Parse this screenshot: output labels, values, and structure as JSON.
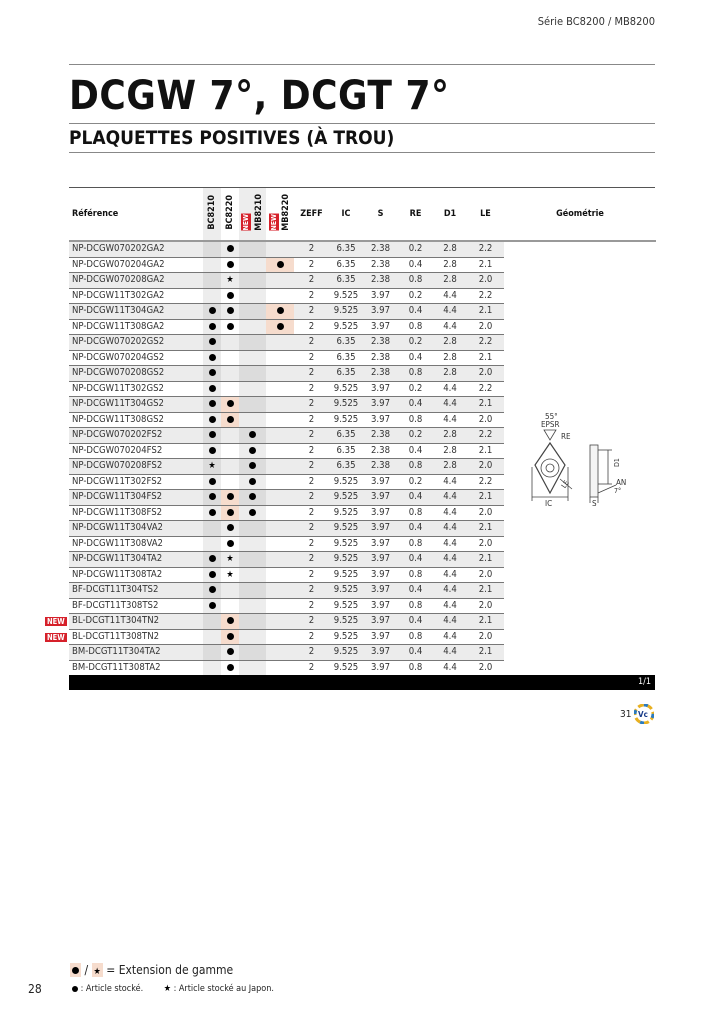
{
  "header": {
    "series": "Série BC8200 / MB8200"
  },
  "title": "DCGW 7°, DCGT 7°",
  "subtitle": "PLAQUETTES POSITIVES (À TROU)",
  "table": {
    "columns": {
      "reference": "Référence",
      "bc8210": "BC8210",
      "bc8220": "BC8220",
      "mb8210": "MB8210",
      "mb8220": "MB8220",
      "new_tag": "NEW",
      "zeff": "ZEFF",
      "ic": "IC",
      "s": "S",
      "re": "RE",
      "d1": "D1",
      "le": "LE",
      "geometry": "Géométrie"
    },
    "rows": [
      {
        "ref": "NP-DCGW070202GA2",
        "grades": [
          "",
          "dot",
          "",
          ""
        ],
        "zeff": "2",
        "ic": "6.35",
        "s": "2.38",
        "re": "0.2",
        "d1": "2.8",
        "le": "2.2"
      },
      {
        "ref": "NP-DCGW070204GA2",
        "grades": [
          "",
          "dot",
          "",
          "dot-ext"
        ],
        "zeff": "2",
        "ic": "6.35",
        "s": "2.38",
        "re": "0.4",
        "d1": "2.8",
        "le": "2.1"
      },
      {
        "ref": "NP-DCGW070208GA2",
        "grades": [
          "",
          "star",
          "",
          ""
        ],
        "zeff": "2",
        "ic": "6.35",
        "s": "2.38",
        "re": "0.8",
        "d1": "2.8",
        "le": "2.0"
      },
      {
        "ref": "NP-DCGW11T302GA2",
        "grades": [
          "",
          "dot",
          "",
          ""
        ],
        "zeff": "2",
        "ic": "9.525",
        "s": "3.97",
        "re": "0.2",
        "d1": "4.4",
        "le": "2.2"
      },
      {
        "ref": "NP-DCGW11T304GA2",
        "grades": [
          "dot",
          "dot",
          "",
          "dot-ext"
        ],
        "zeff": "2",
        "ic": "9.525",
        "s": "3.97",
        "re": "0.4",
        "d1": "4.4",
        "le": "2.1"
      },
      {
        "ref": "NP-DCGW11T308GA2",
        "grades": [
          "dot",
          "dot",
          "",
          "dot-ext"
        ],
        "zeff": "2",
        "ic": "9.525",
        "s": "3.97",
        "re": "0.8",
        "d1": "4.4",
        "le": "2.0"
      },
      {
        "ref": "NP-DCGW070202GS2",
        "grades": [
          "dot",
          "",
          "",
          ""
        ],
        "zeff": "2",
        "ic": "6.35",
        "s": "2.38",
        "re": "0.2",
        "d1": "2.8",
        "le": "2.2"
      },
      {
        "ref": "NP-DCGW070204GS2",
        "grades": [
          "dot",
          "",
          "",
          ""
        ],
        "zeff": "2",
        "ic": "6.35",
        "s": "2.38",
        "re": "0.4",
        "d1": "2.8",
        "le": "2.1"
      },
      {
        "ref": "NP-DCGW070208GS2",
        "grades": [
          "dot",
          "",
          "",
          ""
        ],
        "zeff": "2",
        "ic": "6.35",
        "s": "2.38",
        "re": "0.8",
        "d1": "2.8",
        "le": "2.0"
      },
      {
        "ref": "NP-DCGW11T302GS2",
        "grades": [
          "dot",
          "",
          "",
          ""
        ],
        "zeff": "2",
        "ic": "9.525",
        "s": "3.97",
        "re": "0.2",
        "d1": "4.4",
        "le": "2.2"
      },
      {
        "ref": "NP-DCGW11T304GS2",
        "grades": [
          "dot",
          "dot-ext",
          "",
          ""
        ],
        "zeff": "2",
        "ic": "9.525",
        "s": "3.97",
        "re": "0.4",
        "d1": "4.4",
        "le": "2.1"
      },
      {
        "ref": "NP-DCGW11T308GS2",
        "grades": [
          "dot",
          "dot-ext",
          "",
          ""
        ],
        "zeff": "2",
        "ic": "9.525",
        "s": "3.97",
        "re": "0.8",
        "d1": "4.4",
        "le": "2.0"
      },
      {
        "ref": "NP-DCGW070202FS2",
        "grades": [
          "dot",
          "",
          "dot",
          ""
        ],
        "zeff": "2",
        "ic": "6.35",
        "s": "2.38",
        "re": "0.2",
        "d1": "2.8",
        "le": "2.2"
      },
      {
        "ref": "NP-DCGW070204FS2",
        "grades": [
          "dot",
          "",
          "dot",
          ""
        ],
        "zeff": "2",
        "ic": "6.35",
        "s": "2.38",
        "re": "0.4",
        "d1": "2.8",
        "le": "2.1"
      },
      {
        "ref": "NP-DCGW070208FS2",
        "grades": [
          "star",
          "",
          "dot",
          ""
        ],
        "zeff": "2",
        "ic": "6.35",
        "s": "2.38",
        "re": "0.8",
        "d1": "2.8",
        "le": "2.0"
      },
      {
        "ref": "NP-DCGW11T302FS2",
        "grades": [
          "dot",
          "",
          "dot",
          ""
        ],
        "zeff": "2",
        "ic": "9.525",
        "s": "3.97",
        "re": "0.2",
        "d1": "4.4",
        "le": "2.2"
      },
      {
        "ref": "NP-DCGW11T304FS2",
        "grades": [
          "dot",
          "dot-ext",
          "dot",
          ""
        ],
        "zeff": "2",
        "ic": "9.525",
        "s": "3.97",
        "re": "0.4",
        "d1": "4.4",
        "le": "2.1"
      },
      {
        "ref": "NP-DCGW11T308FS2",
        "grades": [
          "dot",
          "dot-ext",
          "dot",
          ""
        ],
        "zeff": "2",
        "ic": "9.525",
        "s": "3.97",
        "re": "0.8",
        "d1": "4.4",
        "le": "2.0"
      },
      {
        "ref": "NP-DCGW11T304VA2",
        "grades": [
          "",
          "dot",
          "",
          ""
        ],
        "zeff": "2",
        "ic": "9.525",
        "s": "3.97",
        "re": "0.4",
        "d1": "4.4",
        "le": "2.1"
      },
      {
        "ref": "NP-DCGW11T308VA2",
        "grades": [
          "",
          "dot",
          "",
          ""
        ],
        "zeff": "2",
        "ic": "9.525",
        "s": "3.97",
        "re": "0.8",
        "d1": "4.4",
        "le": "2.0"
      },
      {
        "ref": "NP-DCGW11T304TA2",
        "grades": [
          "dot",
          "star",
          "",
          ""
        ],
        "zeff": "2",
        "ic": "9.525",
        "s": "3.97",
        "re": "0.4",
        "d1": "4.4",
        "le": "2.1"
      },
      {
        "ref": "NP-DCGW11T308TA2",
        "grades": [
          "dot",
          "star",
          "",
          ""
        ],
        "zeff": "2",
        "ic": "9.525",
        "s": "3.97",
        "re": "0.8",
        "d1": "4.4",
        "le": "2.0"
      },
      {
        "ref": "BF-DCGT11T304TS2",
        "grades": [
          "dot",
          "",
          "",
          ""
        ],
        "zeff": "2",
        "ic": "9.525",
        "s": "3.97",
        "re": "0.4",
        "d1": "4.4",
        "le": "2.1"
      },
      {
        "ref": "BF-DCGT11T308TS2",
        "grades": [
          "dot",
          "",
          "",
          ""
        ],
        "zeff": "2",
        "ic": "9.525",
        "s": "3.97",
        "re": "0.8",
        "d1": "4.4",
        "le": "2.0"
      },
      {
        "ref": "BL-DCGT11T304TN2",
        "new": "NEW",
        "grades": [
          "",
          "dot-ext",
          "",
          ""
        ],
        "zeff": "2",
        "ic": "9.525",
        "s": "3.97",
        "re": "0.4",
        "d1": "4.4",
        "le": "2.1"
      },
      {
        "ref": "BL-DCGT11T308TN2",
        "new": "NEW",
        "grades": [
          "",
          "dot-ext",
          "",
          ""
        ],
        "zeff": "2",
        "ic": "9.525",
        "s": "3.97",
        "re": "0.8",
        "d1": "4.4",
        "le": "2.0"
      },
      {
        "ref": "BM-DCGT11T304TA2",
        "grades": [
          "",
          "dot",
          "",
          ""
        ],
        "zeff": "2",
        "ic": "9.525",
        "s": "3.97",
        "re": "0.4",
        "d1": "4.4",
        "le": "2.1"
      },
      {
        "ref": "BM-DCGT11T308TA2",
        "grades": [
          "",
          "dot",
          "",
          ""
        ],
        "zeff": "2",
        "ic": "9.525",
        "s": "3.97",
        "re": "0.8",
        "d1": "4.4",
        "le": "2.0"
      }
    ]
  },
  "geometry_labels": {
    "angle": "55°",
    "epsr": "EPSR",
    "re": "RE",
    "le": "LE",
    "ic": "IC",
    "s": "S",
    "d1": "D1",
    "an": "AN",
    "an_angle": "7°"
  },
  "pager": "1/1",
  "next_page_ref": "31",
  "logo_text": "Vc",
  "page_number": "28",
  "legend": {
    "slash": "/",
    "extension": "= Extension de gamme",
    "stocked": ": Article stocké.",
    "stocked_japan": ": Article stocké au Japon."
  },
  "colors": {
    "extension_highlight": "#f6dccd",
    "new_badge": "#d6202a"
  }
}
